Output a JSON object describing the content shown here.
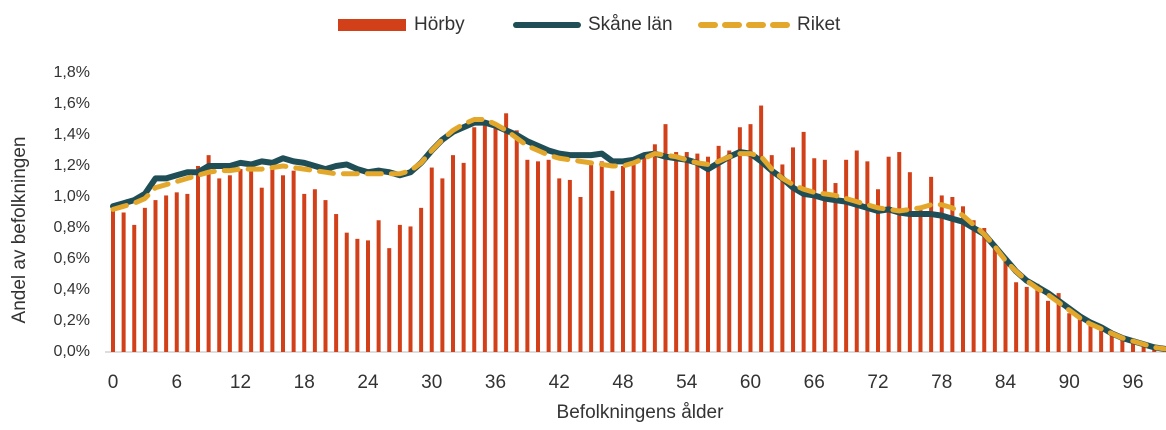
{
  "chart_data": {
    "type": "bar_line",
    "x_label": "Befolkningens ålder",
    "y_label": "Andel av befolkningen",
    "legend": "top",
    "categories": [
      "0",
      null,
      null,
      null,
      null,
      null,
      "6",
      null,
      null,
      null,
      null,
      null,
      "12",
      null,
      null,
      null,
      null,
      null,
      "18",
      null,
      null,
      null,
      null,
      null,
      "24",
      null,
      null,
      null,
      null,
      null,
      "30",
      null,
      null,
      null,
      null,
      null,
      "36",
      null,
      null,
      null,
      null,
      null,
      "42",
      null,
      null,
      null,
      null,
      null,
      "48",
      null,
      null,
      null,
      null,
      null,
      "54",
      null,
      null,
      null,
      null,
      null,
      "60",
      null,
      null,
      null,
      null,
      null,
      "66",
      null,
      null,
      null,
      null,
      null,
      "72",
      null,
      null,
      null,
      null,
      null,
      "78",
      null,
      null,
      null,
      null,
      null,
      "84",
      null,
      null,
      null,
      null,
      null,
      "90",
      null,
      null,
      null,
      null,
      null,
      "96",
      null,
      null,
      null
    ],
    "ylim": [
      0,
      1.8
    ],
    "yticks": [
      {
        "value": 0,
        "label": "0,0%"
      },
      {
        "value": 0.2,
        "label": "0,2%"
      },
      {
        "value": 0.4,
        "label": "0,4%"
      },
      {
        "value": 0.6,
        "label": "0,6%"
      },
      {
        "value": 0.8,
        "label": "0,8%"
      },
      {
        "value": 1.0,
        "label": "1,0%"
      },
      {
        "value": 1.2,
        "label": "1,2%"
      },
      {
        "value": 1.4,
        "label": "1,4%"
      },
      {
        "value": 1.6,
        "label": "1,6%"
      },
      {
        "value": 1.8,
        "label": "1,8%"
      }
    ],
    "series": [
      {
        "name": "Hörby",
        "type": "bar",
        "color": "#d2401a",
        "values": [
          0.92,
          0.9,
          0.82,
          0.93,
          0.98,
          1.01,
          1.03,
          1.02,
          1.2,
          1.27,
          1.12,
          1.14,
          1.18,
          1.2,
          1.06,
          1.22,
          1.14,
          1.17,
          1.02,
          1.05,
          0.98,
          0.89,
          0.77,
          0.73,
          0.72,
          0.85,
          0.67,
          0.82,
          0.81,
          0.93,
          1.19,
          1.12,
          1.27,
          1.22,
          1.45,
          1.48,
          1.45,
          1.54,
          1.43,
          1.24,
          1.23,
          1.24,
          1.12,
          1.11,
          1.0,
          1.22,
          1.23,
          1.04,
          1.2,
          1.25,
          1.28,
          1.34,
          1.47,
          1.29,
          1.29,
          1.28,
          1.26,
          1.33,
          1.3,
          1.45,
          1.47,
          1.59,
          1.27,
          1.21,
          1.32,
          1.42,
          1.25,
          1.24,
          1.09,
          1.24,
          1.3,
          1.23,
          1.05,
          1.26,
          1.29,
          1.16,
          0.92,
          1.13,
          1.01,
          1.0,
          0.94,
          0.85,
          0.8,
          0.68,
          0.61,
          0.45,
          0.42,
          0.44,
          0.33,
          0.38,
          0.25,
          0.22,
          0.18,
          0.15,
          0.12,
          0.1,
          0.07,
          0.05,
          0.03,
          0.02
        ]
      },
      {
        "name": "Skåne län",
        "type": "line",
        "color": "#1f4e57",
        "values": [
          0.94,
          0.96,
          0.98,
          1.02,
          1.12,
          1.12,
          1.14,
          1.16,
          1.16,
          1.2,
          1.2,
          1.2,
          1.22,
          1.21,
          1.23,
          1.22,
          1.25,
          1.23,
          1.22,
          1.2,
          1.18,
          1.2,
          1.21,
          1.18,
          1.16,
          1.17,
          1.16,
          1.14,
          1.16,
          1.22,
          1.3,
          1.37,
          1.42,
          1.45,
          1.48,
          1.48,
          1.46,
          1.43,
          1.4,
          1.36,
          1.33,
          1.3,
          1.28,
          1.27,
          1.27,
          1.27,
          1.28,
          1.23,
          1.23,
          1.24,
          1.27,
          1.28,
          1.26,
          1.25,
          1.24,
          1.22,
          1.18,
          1.22,
          1.26,
          1.29,
          1.28,
          1.23,
          1.17,
          1.12,
          1.06,
          1.02,
          1.01,
          0.99,
          0.98,
          0.97,
          0.95,
          0.93,
          0.91,
          0.92,
          0.9,
          0.89,
          0.89,
          0.89,
          0.88,
          0.86,
          0.84,
          0.8,
          0.76,
          0.68,
          0.6,
          0.52,
          0.46,
          0.42,
          0.38,
          0.33,
          0.28,
          0.23,
          0.19,
          0.16,
          0.12,
          0.09,
          0.07,
          0.05,
          0.03,
          0.02
        ]
      },
      {
        "name": "Riket",
        "type": "line",
        "dashed": true,
        "color": "#e3a82b",
        "values": [
          0.92,
          0.94,
          0.96,
          0.99,
          1.06,
          1.08,
          1.1,
          1.12,
          1.14,
          1.16,
          1.17,
          1.17,
          1.18,
          1.18,
          1.18,
          1.19,
          1.2,
          1.19,
          1.18,
          1.17,
          1.16,
          1.15,
          1.15,
          1.15,
          1.15,
          1.15,
          1.15,
          1.15,
          1.17,
          1.22,
          1.3,
          1.37,
          1.43,
          1.47,
          1.5,
          1.5,
          1.47,
          1.43,
          1.38,
          1.33,
          1.3,
          1.27,
          1.25,
          1.24,
          1.23,
          1.22,
          1.21,
          1.2,
          1.2,
          1.22,
          1.25,
          1.28,
          1.27,
          1.26,
          1.24,
          1.22,
          1.21,
          1.23,
          1.26,
          1.28,
          1.28,
          1.26,
          1.18,
          1.12,
          1.08,
          1.05,
          1.03,
          1.02,
          1.01,
          0.99,
          0.97,
          0.95,
          0.93,
          0.92,
          0.91,
          0.92,
          0.93,
          0.95,
          0.95,
          0.93,
          0.88,
          0.82,
          0.76,
          0.68,
          0.59,
          0.52,
          0.46,
          0.41,
          0.37,
          0.32,
          0.27,
          0.22,
          0.18,
          0.15,
          0.12,
          0.09,
          0.07,
          0.05,
          0.03,
          0.02
        ]
      }
    ]
  }
}
